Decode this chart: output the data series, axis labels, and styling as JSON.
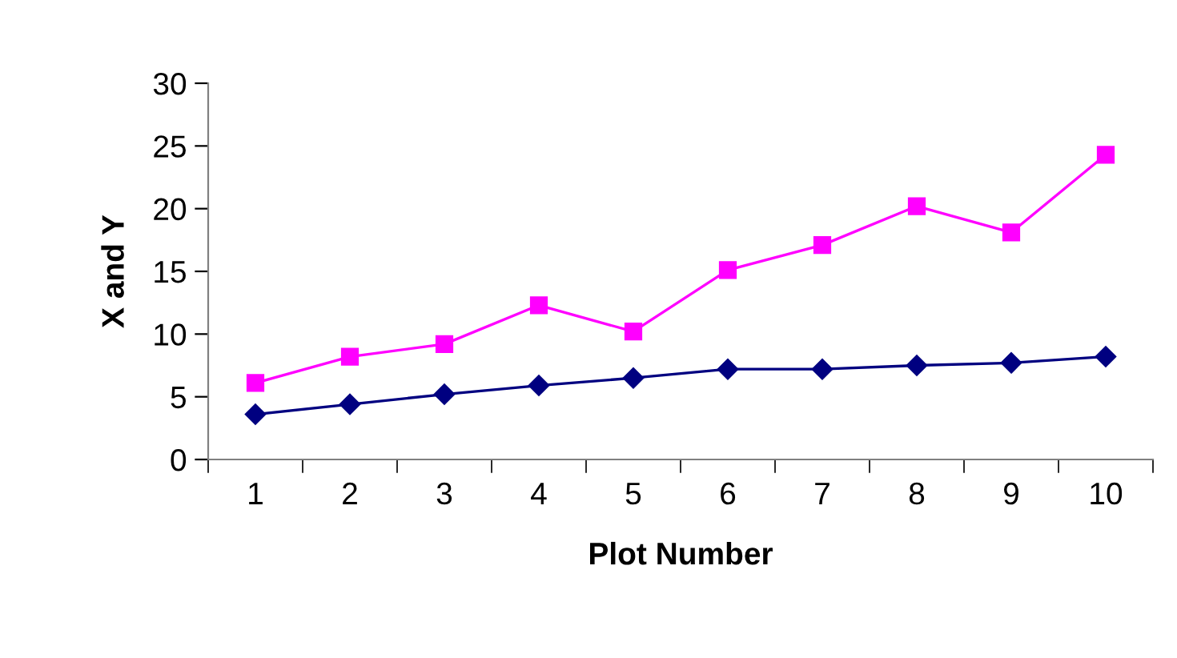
{
  "chart_data": {
    "type": "line",
    "xlabel": "Plot Number",
    "ylabel": "X and Y",
    "categories": [
      "1",
      "2",
      "3",
      "4",
      "5",
      "6",
      "7",
      "8",
      "9",
      "10"
    ],
    "series": [
      {
        "color": "#ff00ff",
        "marker": "square",
        "values": [
          6.1,
          8.2,
          9.2,
          12.3,
          10.2,
          15.1,
          17.1,
          20.2,
          18.1,
          24.3
        ]
      },
      {
        "color": "#000080",
        "marker": "diamond",
        "values": [
          3.6,
          4.4,
          5.2,
          5.9,
          6.5,
          7.2,
          7.2,
          7.5,
          7.7,
          8.2
        ]
      }
    ],
    "ylim": [
      0,
      30
    ],
    "yticks": [
      0,
      5,
      10,
      15,
      20,
      25,
      30
    ],
    "grid": false,
    "legend": false
  }
}
